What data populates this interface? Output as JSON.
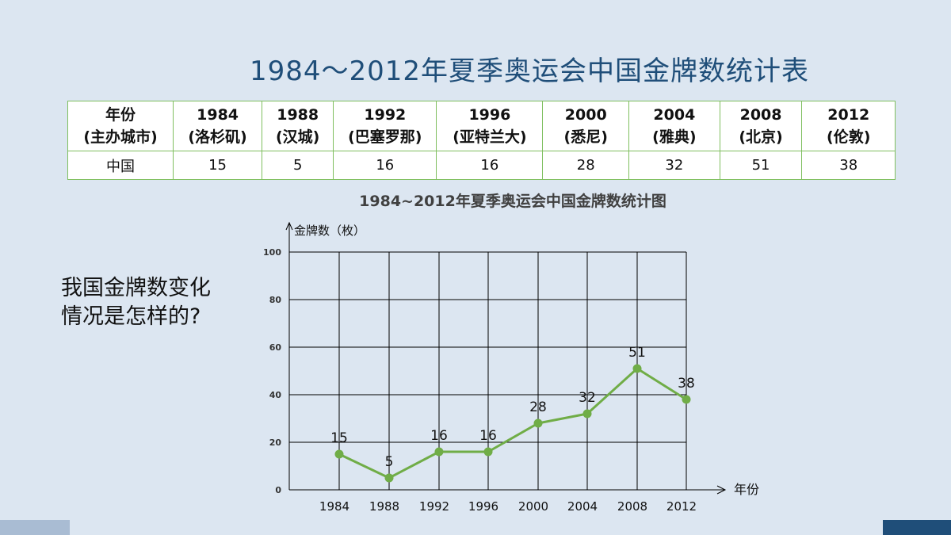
{
  "slide_title": "1984～2012年夏季奥运会中国金牌数统计表",
  "table": {
    "header": [
      {
        "year": "年份",
        "city": "(主办城市)"
      },
      {
        "year": "1984",
        "city": "(洛杉矶)"
      },
      {
        "year": "1988",
        "city": "(汉城)"
      },
      {
        "year": "1992",
        "city": "(巴塞罗那)"
      },
      {
        "year": "1996",
        "city": "(亚特兰大)"
      },
      {
        "year": "2000",
        "city": "(悉尼)"
      },
      {
        "year": "2004",
        "city": "(雅典)"
      },
      {
        "year": "2008",
        "city": "(北京)"
      },
      {
        "year": "2012",
        "city": "(伦敦)"
      }
    ],
    "row_label": "中国",
    "row_values": [
      "15",
      "5",
      "16",
      "16",
      "28",
      "32",
      "51",
      "38"
    ]
  },
  "question": {
    "line1": "我国金牌数变化",
    "line2": "情况是怎样的?"
  },
  "colors": {
    "background": "#dce6f1",
    "title": "#1f4e79",
    "table_border": "#7fbf5f",
    "line": "#70ad47",
    "grid": "#000000"
  },
  "chart_data": {
    "type": "line",
    "title": "1984~2012年夏季奥运会中国金牌数统计图",
    "ylabel": "金牌数（枚）",
    "xlabel": "年份",
    "categories": [
      "1984",
      "1988",
      "1992",
      "1996",
      "2000",
      "2004",
      "2008",
      "2012"
    ],
    "series": [
      {
        "values": [
          15,
          5,
          16,
          16,
          28,
          32,
          51,
          38
        ]
      }
    ],
    "data_labels": [
      "15",
      "5",
      "16",
      "16",
      "28",
      "32",
      "51",
      "38"
    ],
    "yticks": [
      "0",
      "20",
      "40",
      "60",
      "80",
      "100"
    ],
    "ylim": [
      0,
      100
    ],
    "grid": true,
    "legend": "none"
  }
}
